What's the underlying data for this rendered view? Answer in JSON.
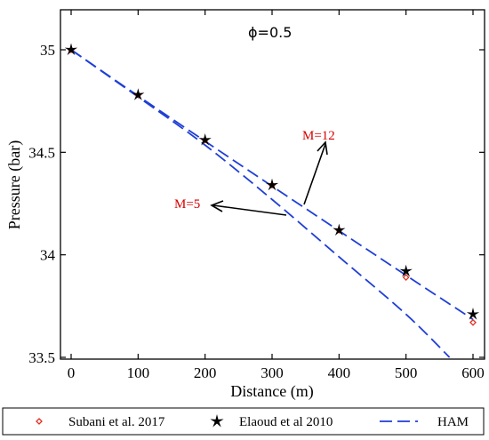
{
  "chart_data": {
    "type": "line",
    "xlabel": "Distance (m)",
    "ylabel": "Pressure (bar)",
    "xlim": [
      0,
      600
    ],
    "ylim": [
      33.5,
      35.2
    ],
    "xticks": [
      0,
      100,
      200,
      300,
      400,
      500,
      600
    ],
    "yticks": [
      33.5,
      34,
      34.5,
      35
    ],
    "xtick_labels": [
      "0",
      "100",
      "200",
      "300",
      "400",
      "500",
      "600"
    ],
    "ytick_labels": [
      "33.5",
      "34",
      "34.5",
      "35"
    ],
    "grid": false,
    "legend_position": "bottom",
    "series": [
      {
        "name": "Subani et al. 2017",
        "style": "scatter-diamond",
        "color": "#e03020",
        "x": [
          0,
          100,
          200,
          300,
          400,
          500,
          600
        ],
        "y": [
          35.0,
          34.78,
          34.56,
          34.34,
          34.12,
          33.89,
          33.67
        ]
      },
      {
        "name": "Elaoud et al 2010",
        "style": "scatter-star",
        "color": "#000000",
        "x": [
          0,
          100,
          200,
          300,
          400,
          500,
          600
        ],
        "y": [
          35.0,
          34.78,
          34.56,
          34.34,
          34.12,
          33.92,
          33.71
        ]
      },
      {
        "name": "HAM",
        "style": "dashed-line",
        "color": "#1f3fd6",
        "curves": [
          {
            "label": "M=12",
            "x": [
              0,
              100,
              200,
              300,
              400,
              500,
              600
            ],
            "y": [
              35.0,
              34.775,
              34.554,
              34.335,
              34.117,
              33.9,
              33.685
            ]
          },
          {
            "label": "M=5",
            "x": [
              0,
              100,
              200,
              300,
              400,
              500,
              565
            ],
            "y": [
              35.0,
              34.77,
              34.535,
              34.27,
              33.99,
              33.71,
              33.5
            ]
          }
        ]
      }
    ],
    "annotations": {
      "phi": "ϕ=0.5",
      "m12": "M=12",
      "m5": "M=5"
    }
  }
}
